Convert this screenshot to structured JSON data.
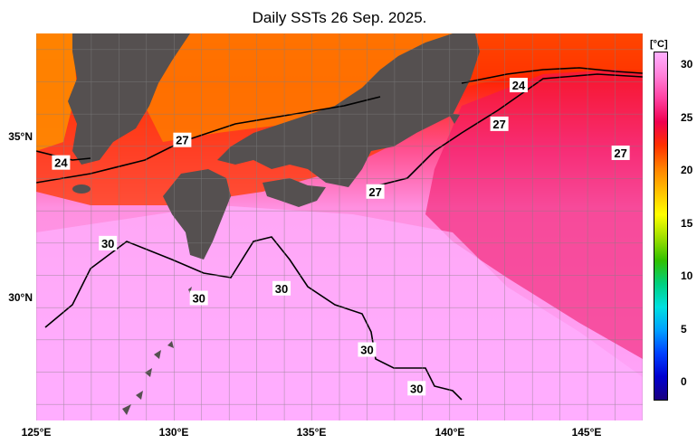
{
  "title": "Daily SSTs 26 Sep. 2025.",
  "x_axis": {
    "ticks": [
      "125°E",
      "130°E",
      "135°E",
      "140°E",
      "145°E"
    ],
    "tick_lon": [
      125,
      130,
      135,
      140,
      145
    ],
    "lon_range": [
      125,
      147
    ]
  },
  "y_axis": {
    "ticks": [
      "35°N",
      "30°N"
    ],
    "tick_lat": [
      35,
      30
    ],
    "lat_range": [
      26.5,
      38.5
    ]
  },
  "colorbar": {
    "unit": "[°C]",
    "ticks": [
      "30",
      "25",
      "20",
      "15",
      "10",
      "5",
      "0"
    ],
    "tick_values": [
      30,
      25,
      20,
      15,
      10,
      5,
      0
    ],
    "range": [
      -2,
      31
    ],
    "colors": [
      "#1a0080",
      "#0000d0",
      "#0040ff",
      "#00a0ff",
      "#00e0e0",
      "#00d080",
      "#30c000",
      "#a0e000",
      "#ffff00",
      "#ffc000",
      "#ff8000",
      "#ff3000",
      "#f00050",
      "#ff40a0",
      "#ff80d8",
      "#ffb0ff"
    ]
  },
  "isotherm_labels": [
    {
      "text": "24",
      "lon": 142.5,
      "lat": 36.9
    },
    {
      "text": "24",
      "lon": 125.9,
      "lat": 34.5
    },
    {
      "text": "27",
      "lon": 141.8,
      "lat": 35.7
    },
    {
      "text": "27",
      "lon": 130.3,
      "lat": 35.2
    },
    {
      "text": "27",
      "lon": 137.3,
      "lat": 33.6
    },
    {
      "text": "27",
      "lon": 146.2,
      "lat": 34.8
    },
    {
      "text": "30",
      "lon": 127.6,
      "lat": 32.0
    },
    {
      "text": "30",
      "lon": 130.9,
      "lat": 30.3
    },
    {
      "text": "30",
      "lon": 133.9,
      "lat": 30.6
    },
    {
      "text": "30",
      "lon": 137.0,
      "lat": 28.7
    },
    {
      "text": "30",
      "lon": 138.8,
      "lat": 27.5
    }
  ],
  "land_color": "#555050"
}
